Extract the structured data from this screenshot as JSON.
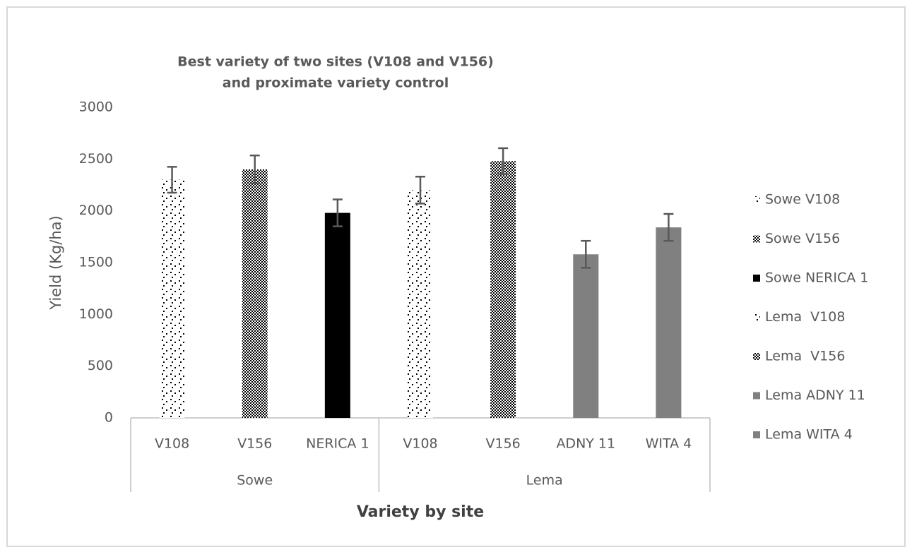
{
  "chart_data": {
    "type": "bar",
    "title": [
      "Best variety of two sites (V108 and V156)",
      "and proximate variety control"
    ],
    "y_label": "Yield (Kg/ha)",
    "x_label": "Variety by site",
    "groups": [
      {
        "name": "Sowe",
        "categories": [
          "V108",
          "V156",
          "NERICA 1"
        ]
      },
      {
        "name": "Lema",
        "categories": [
          "V108",
          "V156",
          "ADNY 11",
          "WITA 4"
        ]
      }
    ],
    "series": [
      {
        "name": "Sowe V108",
        "color": "#000000",
        "pattern": "dots",
        "values": [
          2300,
          null,
          null,
          null,
          null,
          null,
          null
        ],
        "errors": [
          125,
          null,
          null,
          null,
          null,
          null,
          null
        ]
      },
      {
        "name": "Sowe V156",
        "color": "#000000",
        "pattern": "checker",
        "values": [
          null,
          2400,
          null,
          null,
          null,
          null,
          null
        ],
        "errors": [
          null,
          135,
          null,
          null,
          null,
          null,
          null
        ]
      },
      {
        "name": "Sowe NERICA 1",
        "color": "#000000",
        "pattern": "solid",
        "values": [
          null,
          null,
          1980,
          null,
          null,
          null,
          null
        ],
        "errors": [
          null,
          null,
          130,
          null,
          null,
          null,
          null
        ]
      },
      {
        "name": "Lema  V108",
        "color": "#000000",
        "pattern": "dots",
        "values": [
          null,
          null,
          null,
          2200,
          null,
          null,
          null
        ],
        "errors": [
          null,
          null,
          null,
          130,
          null,
          null,
          null
        ]
      },
      {
        "name": "Lema  V156",
        "color": "#000000",
        "pattern": "checker",
        "values": [
          null,
          null,
          null,
          null,
          2480,
          null,
          null
        ],
        "errors": [
          null,
          null,
          null,
          null,
          125,
          null,
          null
        ]
      },
      {
        "name": "Lema ADNY 11",
        "color": "#808080",
        "pattern": "solid",
        "values": [
          null,
          null,
          null,
          null,
          null,
          1580,
          null
        ],
        "errors": [
          null,
          null,
          null,
          null,
          null,
          130,
          null
        ]
      },
      {
        "name": "Lema WITA 4",
        "color": "#808080",
        "pattern": "solid",
        "values": [
          null,
          null,
          null,
          null,
          null,
          null,
          1840
        ],
        "errors": [
          null,
          null,
          null,
          null,
          null,
          null,
          130
        ]
      }
    ],
    "ylim": [
      0,
      3000
    ],
    "yticks": [
      0,
      500,
      1000,
      1500,
      2000,
      2500,
      3000
    ],
    "grid": false,
    "legend": "right"
  }
}
